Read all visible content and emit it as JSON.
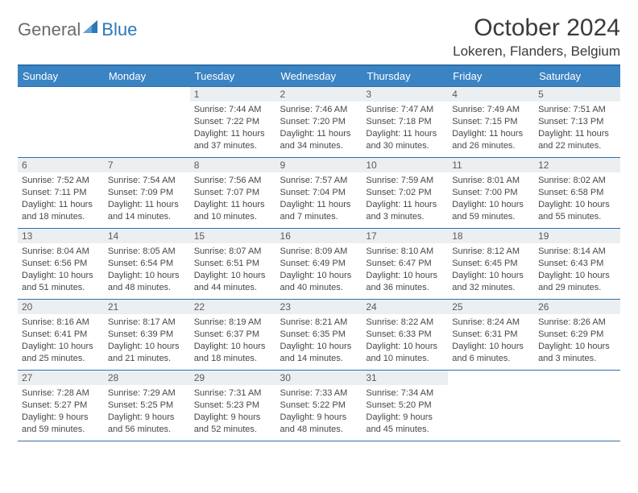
{
  "logo": {
    "general": "General",
    "blue": "Blue",
    "iconColor": "#2f77b6"
  },
  "title": "October 2024",
  "location": "Lokeren, Flanders, Belgium",
  "colors": {
    "headerBg": "#3b84c4",
    "headerBorder": "#2f6fa8",
    "dayNumBg": "#eceff1",
    "text": "#404040"
  },
  "weekdays": [
    "Sunday",
    "Monday",
    "Tuesday",
    "Wednesday",
    "Thursday",
    "Friday",
    "Saturday"
  ],
  "weeks": [
    [
      {
        "n": "",
        "sr": "",
        "ss": "",
        "dl": ""
      },
      {
        "n": "",
        "sr": "",
        "ss": "",
        "dl": ""
      },
      {
        "n": "1",
        "sr": "Sunrise: 7:44 AM",
        "ss": "Sunset: 7:22 PM",
        "dl": "Daylight: 11 hours and 37 minutes."
      },
      {
        "n": "2",
        "sr": "Sunrise: 7:46 AM",
        "ss": "Sunset: 7:20 PM",
        "dl": "Daylight: 11 hours and 34 minutes."
      },
      {
        "n": "3",
        "sr": "Sunrise: 7:47 AM",
        "ss": "Sunset: 7:18 PM",
        "dl": "Daylight: 11 hours and 30 minutes."
      },
      {
        "n": "4",
        "sr": "Sunrise: 7:49 AM",
        "ss": "Sunset: 7:15 PM",
        "dl": "Daylight: 11 hours and 26 minutes."
      },
      {
        "n": "5",
        "sr": "Sunrise: 7:51 AM",
        "ss": "Sunset: 7:13 PM",
        "dl": "Daylight: 11 hours and 22 minutes."
      }
    ],
    [
      {
        "n": "6",
        "sr": "Sunrise: 7:52 AM",
        "ss": "Sunset: 7:11 PM",
        "dl": "Daylight: 11 hours and 18 minutes."
      },
      {
        "n": "7",
        "sr": "Sunrise: 7:54 AM",
        "ss": "Sunset: 7:09 PM",
        "dl": "Daylight: 11 hours and 14 minutes."
      },
      {
        "n": "8",
        "sr": "Sunrise: 7:56 AM",
        "ss": "Sunset: 7:07 PM",
        "dl": "Daylight: 11 hours and 10 minutes."
      },
      {
        "n": "9",
        "sr": "Sunrise: 7:57 AM",
        "ss": "Sunset: 7:04 PM",
        "dl": "Daylight: 11 hours and 7 minutes."
      },
      {
        "n": "10",
        "sr": "Sunrise: 7:59 AM",
        "ss": "Sunset: 7:02 PM",
        "dl": "Daylight: 11 hours and 3 minutes."
      },
      {
        "n": "11",
        "sr": "Sunrise: 8:01 AM",
        "ss": "Sunset: 7:00 PM",
        "dl": "Daylight: 10 hours and 59 minutes."
      },
      {
        "n": "12",
        "sr": "Sunrise: 8:02 AM",
        "ss": "Sunset: 6:58 PM",
        "dl": "Daylight: 10 hours and 55 minutes."
      }
    ],
    [
      {
        "n": "13",
        "sr": "Sunrise: 8:04 AM",
        "ss": "Sunset: 6:56 PM",
        "dl": "Daylight: 10 hours and 51 minutes."
      },
      {
        "n": "14",
        "sr": "Sunrise: 8:05 AM",
        "ss": "Sunset: 6:54 PM",
        "dl": "Daylight: 10 hours and 48 minutes."
      },
      {
        "n": "15",
        "sr": "Sunrise: 8:07 AM",
        "ss": "Sunset: 6:51 PM",
        "dl": "Daylight: 10 hours and 44 minutes."
      },
      {
        "n": "16",
        "sr": "Sunrise: 8:09 AM",
        "ss": "Sunset: 6:49 PM",
        "dl": "Daylight: 10 hours and 40 minutes."
      },
      {
        "n": "17",
        "sr": "Sunrise: 8:10 AM",
        "ss": "Sunset: 6:47 PM",
        "dl": "Daylight: 10 hours and 36 minutes."
      },
      {
        "n": "18",
        "sr": "Sunrise: 8:12 AM",
        "ss": "Sunset: 6:45 PM",
        "dl": "Daylight: 10 hours and 32 minutes."
      },
      {
        "n": "19",
        "sr": "Sunrise: 8:14 AM",
        "ss": "Sunset: 6:43 PM",
        "dl": "Daylight: 10 hours and 29 minutes."
      }
    ],
    [
      {
        "n": "20",
        "sr": "Sunrise: 8:16 AM",
        "ss": "Sunset: 6:41 PM",
        "dl": "Daylight: 10 hours and 25 minutes."
      },
      {
        "n": "21",
        "sr": "Sunrise: 8:17 AM",
        "ss": "Sunset: 6:39 PM",
        "dl": "Daylight: 10 hours and 21 minutes."
      },
      {
        "n": "22",
        "sr": "Sunrise: 8:19 AM",
        "ss": "Sunset: 6:37 PM",
        "dl": "Daylight: 10 hours and 18 minutes."
      },
      {
        "n": "23",
        "sr": "Sunrise: 8:21 AM",
        "ss": "Sunset: 6:35 PM",
        "dl": "Daylight: 10 hours and 14 minutes."
      },
      {
        "n": "24",
        "sr": "Sunrise: 8:22 AM",
        "ss": "Sunset: 6:33 PM",
        "dl": "Daylight: 10 hours and 10 minutes."
      },
      {
        "n": "25",
        "sr": "Sunrise: 8:24 AM",
        "ss": "Sunset: 6:31 PM",
        "dl": "Daylight: 10 hours and 6 minutes."
      },
      {
        "n": "26",
        "sr": "Sunrise: 8:26 AM",
        "ss": "Sunset: 6:29 PM",
        "dl": "Daylight: 10 hours and 3 minutes."
      }
    ],
    [
      {
        "n": "27",
        "sr": "Sunrise: 7:28 AM",
        "ss": "Sunset: 5:27 PM",
        "dl": "Daylight: 9 hours and 59 minutes."
      },
      {
        "n": "28",
        "sr": "Sunrise: 7:29 AM",
        "ss": "Sunset: 5:25 PM",
        "dl": "Daylight: 9 hours and 56 minutes."
      },
      {
        "n": "29",
        "sr": "Sunrise: 7:31 AM",
        "ss": "Sunset: 5:23 PM",
        "dl": "Daylight: 9 hours and 52 minutes."
      },
      {
        "n": "30",
        "sr": "Sunrise: 7:33 AM",
        "ss": "Sunset: 5:22 PM",
        "dl": "Daylight: 9 hours and 48 minutes."
      },
      {
        "n": "31",
        "sr": "Sunrise: 7:34 AM",
        "ss": "Sunset: 5:20 PM",
        "dl": "Daylight: 9 hours and 45 minutes."
      },
      {
        "n": "",
        "sr": "",
        "ss": "",
        "dl": ""
      },
      {
        "n": "",
        "sr": "",
        "ss": "",
        "dl": ""
      }
    ]
  ]
}
